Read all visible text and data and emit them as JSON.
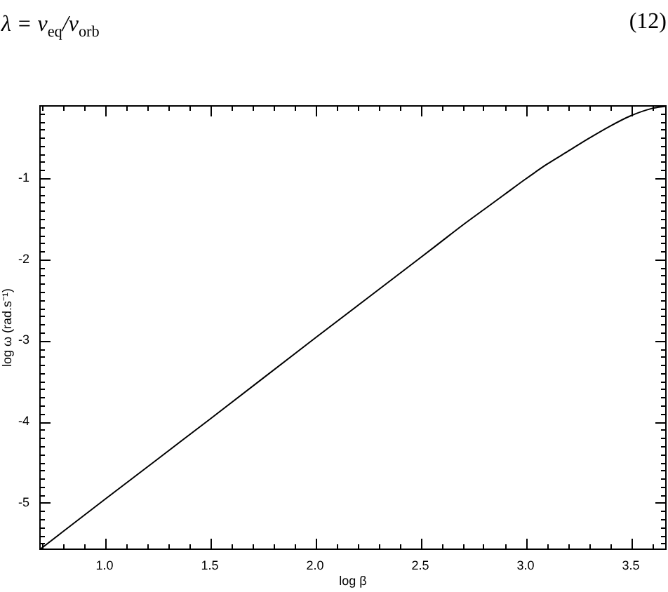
{
  "chart_data": {
    "type": "line",
    "xlabel": "log β",
    "ylabel": "log ω (rad.s⁻¹)",
    "annotations": [
      "λ = v$_{eq}$/v$_{orb}$",
      "(12)"
    ],
    "x": [
      0.69,
      1.0,
      1.5,
      2.0,
      2.5,
      2.6,
      2.7,
      2.8,
      2.9,
      3.0,
      3.1,
      3.2,
      3.3,
      3.4,
      3.5,
      3.6,
      3.67
    ],
    "values": [
      -5.58,
      -4.96,
      -3.97,
      -2.97,
      -1.98,
      -1.78,
      -1.58,
      -1.39,
      -1.2,
      -1.01,
      -0.83,
      -0.67,
      -0.51,
      -0.36,
      -0.23,
      -0.14,
      -0.11
    ],
    "color": "#000000",
    "xlim": [
      0.69,
      3.67
    ],
    "ylim": [
      -5.58,
      -0.1
    ],
    "xticks": [
      {
        "value": 0.7,
        "label": null
      },
      {
        "value": 0.8,
        "label": null
      },
      {
        "value": 0.9,
        "label": null
      },
      {
        "value": 1,
        "label": "1.0"
      },
      {
        "value": 1.1,
        "label": null
      },
      {
        "value": 1.2,
        "label": null
      },
      {
        "value": 1.3,
        "label": null
      },
      {
        "value": 1.4,
        "label": null
      },
      1.5,
      {
        "value": 1.6,
        "label": null
      },
      {
        "value": 1.7,
        "label": null
      },
      {
        "value": 1.8,
        "label": null
      },
      {
        "value": 1.9,
        "label": null
      },
      {
        "value": 2,
        "label": "2.0"
      },
      {
        "value": 2.1,
        "label": null
      },
      {
        "value": 2.2,
        "label": null
      },
      {
        "value": 2.3,
        "label": null
      },
      {
        "value": 2.4,
        "label": null
      },
      2.5,
      {
        "value": 2.6,
        "label": null
      },
      {
        "value": 2.7,
        "label": null
      },
      {
        "value": 2.8,
        "label": null
      },
      {
        "value": 2.9,
        "label": null
      },
      {
        "value": 3,
        "label": "3.0"
      },
      {
        "value": 3.1,
        "label": null
      },
      {
        "value": 3.2,
        "label": null
      },
      {
        "value": 3.3,
        "label": null
      },
      {
        "value": 3.4,
        "label": null
      },
      3.5,
      {
        "value": 3.6,
        "label": null
      }
    ],
    "yticks": [
      {
        "value": -5.5,
        "label": null
      },
      {
        "value": -5.4,
        "label": null
      },
      {
        "value": -5.3,
        "label": null
      },
      {
        "value": -5.2,
        "label": null
      },
      {
        "value": -5.1,
        "label": null
      },
      -5,
      {
        "value": -4.9,
        "label": null
      },
      {
        "value": -4.8,
        "label": null
      },
      {
        "value": -4.7,
        "label": null
      },
      {
        "value": -4.6,
        "label": null
      },
      {
        "value": -4.5,
        "label": null
      },
      {
        "value": -4.4,
        "label": null
      },
      {
        "value": -4.3,
        "label": null
      },
      {
        "value": -4.2,
        "label": null
      },
      {
        "value": -4.1,
        "label": null
      },
      -4,
      {
        "value": -3.9,
        "label": null
      },
      {
        "value": -3.8,
        "label": null
      },
      {
        "value": -3.7,
        "label": null
      },
      {
        "value": -3.6,
        "label": null
      },
      {
        "value": -3.5,
        "label": null
      },
      {
        "value": -3.4,
        "label": null
      },
      {
        "value": -3.3,
        "label": null
      },
      {
        "value": -3.2,
        "label": null
      },
      {
        "value": -3.1,
        "label": null
      },
      -3,
      {
        "value": -2.9,
        "label": null
      },
      {
        "value": -2.8,
        "label": null
      },
      {
        "value": -2.7,
        "label": null
      },
      {
        "value": -2.6,
        "label": null
      },
      {
        "value": -2.5,
        "label": null
      },
      {
        "value": -2.4,
        "label": null
      },
      {
        "value": -2.3,
        "label": null
      },
      {
        "value": -2.2,
        "label": null
      },
      {
        "value": -2.1,
        "label": null
      },
      -2,
      {
        "value": -1.9,
        "label": null
      },
      {
        "value": -1.8,
        "label": null
      },
      {
        "value": -1.7,
        "label": null
      },
      {
        "value": -1.6,
        "label": null
      },
      {
        "value": -1.5,
        "label": null
      },
      {
        "value": -1.4,
        "label": null
      },
      {
        "value": -1.3,
        "label": null
      },
      {
        "value": -1.2,
        "label": null
      },
      {
        "value": -1.1,
        "label": null
      },
      -1,
      {
        "value": -0.9,
        "label": null
      },
      {
        "value": -0.8,
        "label": null
      },
      {
        "value": -0.7,
        "label": null
      },
      {
        "value": -0.6,
        "label": null
      },
      {
        "value": -0.5,
        "label": null
      },
      {
        "value": -0.4,
        "label": null
      },
      {
        "value": -0.3,
        "label": null
      },
      {
        "value": -0.2,
        "label": null
      }
    ]
  }
}
